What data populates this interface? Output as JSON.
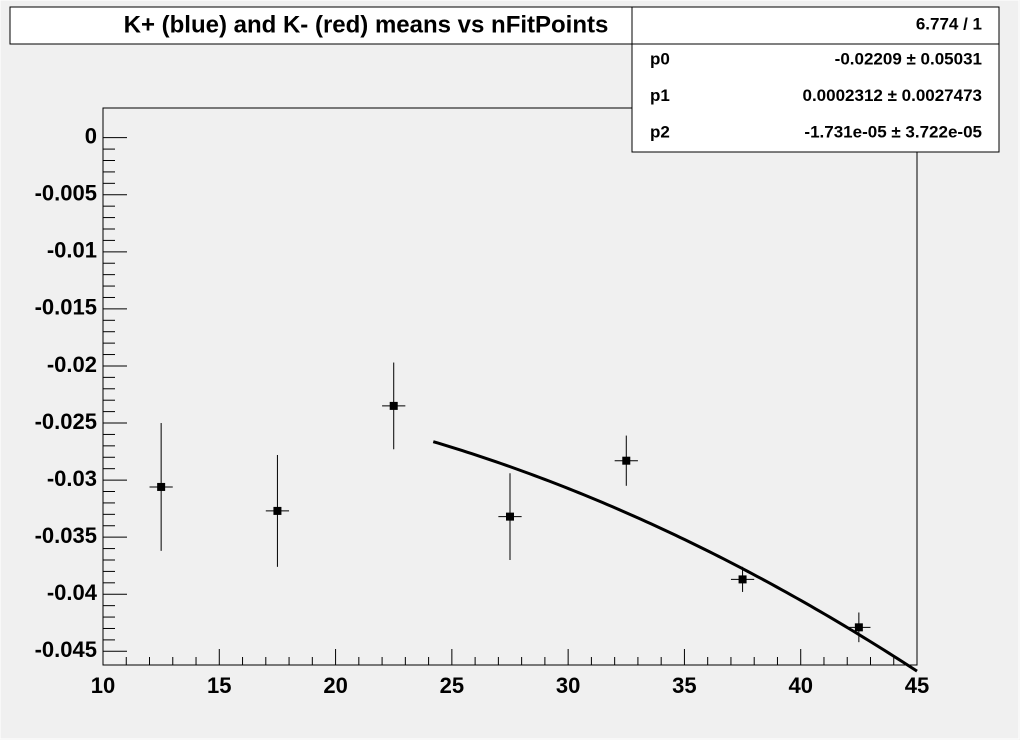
{
  "chart_data": {
    "type": "errorbar",
    "title": "K+ (blue) and K- (red) means vs nFitPoints",
    "x": [
      12.5,
      17.5,
      22.5,
      27.5,
      32.5,
      37.5,
      42.5
    ],
    "values": [
      -0.0306,
      -0.0327,
      -0.0235,
      -0.0332,
      -0.0283,
      -0.0387,
      -0.0429
    ],
    "x_errors": [
      0.5,
      0.5,
      0.5,
      0.5,
      0.5,
      0.5,
      0.5
    ],
    "errors": [
      0.0056,
      0.0049,
      0.0038,
      0.0038,
      0.0022,
      0.0011,
      0.0013
    ],
    "color": "#000000",
    "xlim": [
      10,
      45
    ],
    "ylim": [
      -0.0462,
      0.0026
    ],
    "xticks": [
      10,
      15,
      20,
      25,
      30,
      35,
      40,
      45
    ],
    "yticks": [
      0,
      -0.005,
      -0.01,
      -0.015,
      -0.02,
      -0.025,
      -0.03,
      -0.035,
      -0.04,
      -0.045
    ],
    "fit": {
      "chi2_ndf": "6.774 / 1",
      "xrange": [
        24.2,
        45
      ],
      "params": [
        {
          "name": "p0",
          "value": -0.02209,
          "error": 0.05031,
          "label": "-0.02209 ± 0.05031"
        },
        {
          "name": "p1",
          "value": 0.0002312,
          "error": 0.0027473,
          "label": "0.0002312 ± 0.0027473"
        },
        {
          "name": "p2",
          "value": -1.731e-05,
          "error": 3.722e-05,
          "label": "-1.731e-05 ± 3.722e-05"
        }
      ]
    }
  }
}
